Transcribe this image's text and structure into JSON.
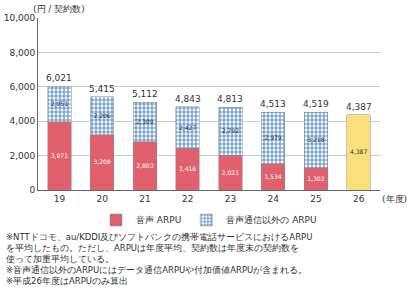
{
  "chart_data": {
    "type": "bar",
    "stacked": true,
    "data_labels": true,
    "grid": true,
    "legend": "bottom",
    "categories": [
      "19",
      "20",
      "21",
      "22",
      "23",
      "24",
      "25",
      "26"
    ],
    "x_label": "(年度)",
    "y_label": "(円 / 契約数)",
    "ylim": [
      0,
      10000
    ],
    "yticks": [
      0,
      {
        "value": 2000,
        "label": "2,000"
      },
      {
        "value": 4000,
        "label": "4,000"
      },
      {
        "value": 6000,
        "label": "6,000"
      },
      {
        "value": 8000,
        "label": "8,000"
      },
      {
        "value": 10000,
        "label": "10,000"
      }
    ],
    "series": [
      {
        "name": "音声 ARPU",
        "color": "#e0606e",
        "values": [
          3971,
          3209,
          2803,
          2416,
          2021,
          1534,
          1302,
          null
        ],
        "value_labels": [
          "3,971",
          "3,209",
          "2,803",
          "2,416",
          "2,021",
          "1,534",
          "1,302",
          null
        ]
      },
      {
        "name": "音声通信以外の ARPU",
        "color": "#5b8fd0",
        "values": [
          2051,
          2206,
          2309,
          2427,
          2792,
          2979,
          3218,
          null
        ],
        "value_labels": [
          "2,051",
          "2,206",
          "2,309",
          "2,427",
          "2,792",
          "2,979",
          "3,218",
          null
        ]
      },
      {
        "color": "#f9e07a",
        "values": [
          null,
          null,
          null,
          null,
          null,
          null,
          null,
          4387
        ],
        "value_labels": [
          null,
          null,
          null,
          null,
          null,
          null,
          null,
          "4,387"
        ]
      }
    ],
    "totals": [
      6021,
      5415,
      5112,
      4843,
      4813,
      4513,
      4519,
      4387
    ],
    "total_labels": [
      "6,021",
      "5,415",
      "5,112",
      "4,843",
      "4,813",
      "4,513",
      "4,519",
      "4,387"
    ],
    "notes": [
      "※NTTドコモ、au/KDDI及びソフトバンクの携帯電話サービスにおけるARPU",
      "を平均したもの。ただし、ARPUは年度平均、契約数は年度末の契約数を",
      "使って加重平均している。",
      "※音声通信以外のARPUにはデータ通信ARPUや付加価値ARPUが含まれる。",
      "※平成26年度はARPUのみ算出"
    ]
  }
}
